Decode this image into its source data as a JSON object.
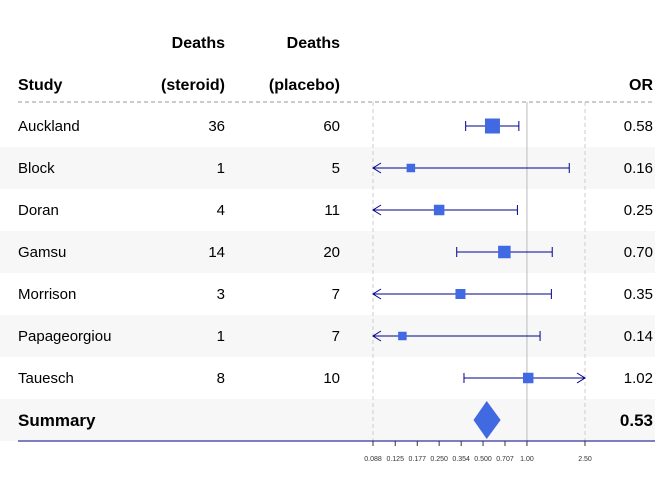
{
  "chart_data": {
    "type": "forest",
    "columns": {
      "study": "Study",
      "steroid": [
        "Deaths",
        "(steroid)"
      ],
      "placebo": [
        "Deaths",
        "(placebo)"
      ],
      "or": "OR"
    },
    "rows": [
      {
        "study": "Auckland",
        "steroid": "36",
        "placebo": "60",
        "or_label": "0.58",
        "or": 0.58,
        "lower": 0.38,
        "upper": 0.88,
        "weight": 1.0
      },
      {
        "study": "Block",
        "steroid": "1",
        "placebo": "5",
        "or_label": "0.16",
        "or": 0.16,
        "lower": 0.088,
        "upper": 1.95,
        "weight": 0.35
      },
      {
        "study": "Doran",
        "steroid": "4",
        "placebo": "11",
        "or_label": "0.25",
        "or": 0.25,
        "lower": 0.088,
        "upper": 0.86,
        "weight": 0.55
      },
      {
        "study": "Gamsu",
        "steroid": "14",
        "placebo": "20",
        "or_label": "0.70",
        "or": 0.7,
        "lower": 0.33,
        "upper": 1.49,
        "weight": 0.75
      },
      {
        "study": "Morrison",
        "steroid": "3",
        "placebo": "7",
        "or_label": "0.35",
        "or": 0.35,
        "lower": 0.088,
        "upper": 1.47,
        "weight": 0.5
      },
      {
        "study": "Papageorgiou",
        "steroid": "1",
        "placebo": "7",
        "or_label": "0.14",
        "or": 0.14,
        "lower": 0.088,
        "upper": 1.23,
        "weight": 0.35
      },
      {
        "study": "Tauesch",
        "steroid": "8",
        "placebo": "10",
        "or_label": "1.02",
        "or": 1.02,
        "lower": 0.37,
        "upper": 2.5,
        "weight": 0.55
      }
    ],
    "summary": {
      "label": "Summary",
      "or_label": "0.53",
      "or": 0.53,
      "lower": 0.43,
      "upper": 0.66
    },
    "xaxis": {
      "scale": "log",
      "range": [
        0.088,
        2.5
      ],
      "ticks": [
        0.088,
        0.125,
        0.177,
        0.25,
        0.354,
        0.5,
        0.707,
        1.0,
        2.5
      ],
      "tick_labels": [
        "0.088",
        "0.125",
        "0.177",
        "0.250",
        "0.354",
        "0.500",
        "0.707",
        "1.00",
        "2.50"
      ]
    },
    "reference_line": 1.0,
    "colors": {
      "box": "#4169e1",
      "ci": "#00008b",
      "stripe": "#f7f7f7",
      "grid": "#cccccc",
      "axis": "#00008b"
    }
  }
}
